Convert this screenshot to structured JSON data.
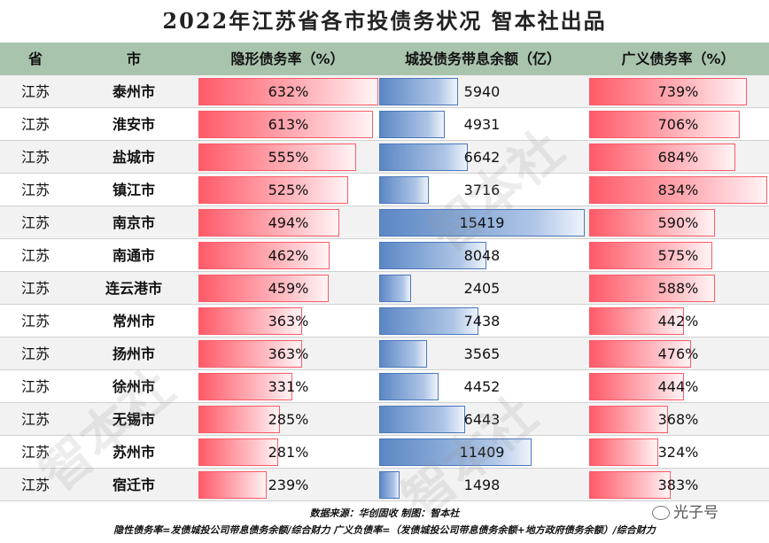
{
  "title": "2022年江苏省各市投债务状况  智本社出品",
  "headers": [
    "省",
    "市",
    "隐形债务率（%）",
    "城投债务带息余额（亿）",
    "广义债务率（%）"
  ],
  "footer": {
    "line1": "数据来源：华创固收  制图：智本社",
    "line2": "隐性债务率=发债城投公司带息债务余额/综合财力    广义负债率=（发债城投公司带息债务余额+地方政府债务余额）/综合财力"
  },
  "watermark": "智本社",
  "logo": "光子号",
  "chart_data": {
    "type": "table",
    "columns": [
      "省",
      "市",
      "隐形债务率（%）",
      "城投债务带息余额（亿）",
      "广义债务率（%）"
    ],
    "colors": {
      "hidden_debt_bar": "#ff5a68",
      "balance_bar": "#5b87c5",
      "broad_debt_bar": "#ff5a68",
      "header_bg": "#a9c4ad"
    },
    "hidden_max": 632,
    "balance_max": 15419,
    "broad_max": 834,
    "rows": [
      {
        "province": "江苏",
        "city": "泰州市",
        "hidden": 632,
        "hidden_label": "632%",
        "balance": 5940,
        "balance_label": "5940",
        "broad": 739,
        "broad_label": "739%"
      },
      {
        "province": "江苏",
        "city": "淮安市",
        "hidden": 613,
        "hidden_label": "613%",
        "balance": 4931,
        "balance_label": "4931",
        "broad": 706,
        "broad_label": "706%"
      },
      {
        "province": "江苏",
        "city": "盐城市",
        "hidden": 555,
        "hidden_label": "555%",
        "balance": 6642,
        "balance_label": "6642",
        "broad": 684,
        "broad_label": "684%"
      },
      {
        "province": "江苏",
        "city": "镇江市",
        "hidden": 525,
        "hidden_label": "525%",
        "balance": 3716,
        "balance_label": "3716",
        "broad": 834,
        "broad_label": "834%"
      },
      {
        "province": "江苏",
        "city": "南京市",
        "hidden": 494,
        "hidden_label": "494%",
        "balance": 15419,
        "balance_label": "15419",
        "broad": 590,
        "broad_label": "590%"
      },
      {
        "province": "江苏",
        "city": "南通市",
        "hidden": 462,
        "hidden_label": "462%",
        "balance": 8048,
        "balance_label": "8048",
        "broad": 575,
        "broad_label": "575%"
      },
      {
        "province": "江苏",
        "city": "连云港市",
        "hidden": 459,
        "hidden_label": "459%",
        "balance": 2405,
        "balance_label": "2405",
        "broad": 588,
        "broad_label": "588%"
      },
      {
        "province": "江苏",
        "city": "常州市",
        "hidden": 363,
        "hidden_label": "363%",
        "balance": 7438,
        "balance_label": "7438",
        "broad": 442,
        "broad_label": "442%"
      },
      {
        "province": "江苏",
        "city": "扬州市",
        "hidden": 363,
        "hidden_label": "363%",
        "balance": 3565,
        "balance_label": "3565",
        "broad": 476,
        "broad_label": "476%"
      },
      {
        "province": "江苏",
        "city": "徐州市",
        "hidden": 331,
        "hidden_label": "331%",
        "balance": 4452,
        "balance_label": "4452",
        "broad": 444,
        "broad_label": "444%"
      },
      {
        "province": "江苏",
        "city": "无锡市",
        "hidden": 285,
        "hidden_label": "285%",
        "balance": 6443,
        "balance_label": "6443",
        "broad": 368,
        "broad_label": "368%"
      },
      {
        "province": "江苏",
        "city": "苏州市",
        "hidden": 281,
        "hidden_label": "281%",
        "balance": 11409,
        "balance_label": "11409",
        "broad": 324,
        "broad_label": "324%"
      },
      {
        "province": "江苏",
        "city": "宿迁市",
        "hidden": 239,
        "hidden_label": "239%",
        "balance": 1498,
        "balance_label": "1498",
        "broad": 383,
        "broad_label": "383%"
      }
    ]
  }
}
